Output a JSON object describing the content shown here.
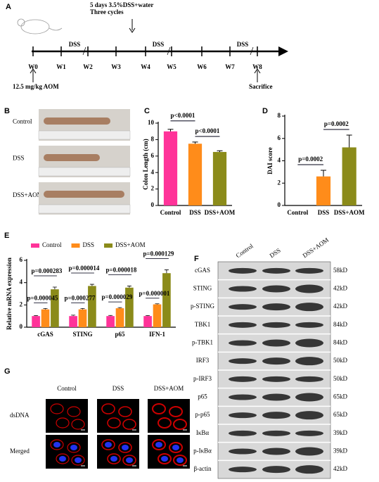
{
  "figure": {
    "panel_a": {
      "label": "A",
      "annotation": [
        "5 days 3.5%DSS+water",
        "Three cycles"
      ],
      "weeks": [
        "W0",
        "W1",
        "W2",
        "W3",
        "W4",
        "W5",
        "W6",
        "W7",
        "W8"
      ],
      "treatment": [
        "DSS",
        "DSS",
        "DSS"
      ],
      "injection": "12.5 mg/kg AOM",
      "endpoint": "Sacrifice"
    },
    "panel_b": {
      "label": "B",
      "rows": [
        "Control",
        "DSS",
        "DSS+AOM"
      ]
    },
    "panel_f": {
      "label": "F",
      "lanes": [
        "Control",
        "DSS",
        "DSS+AOM"
      ],
      "proteins": [
        "cGAS",
        "STING",
        "p-STING",
        "TBK1",
        "p-TBK1",
        "IRF3",
        "p-IRF3",
        "p65",
        "p-p65",
        "IκBα",
        "p-IκBα",
        "β-actin"
      ],
      "sizes": [
        "58kD",
        "42kD",
        "42kD",
        "84kD",
        "84kD",
        "50kD",
        "50kD",
        "65kD",
        "65kD",
        "39kD",
        "39kD",
        "42kD"
      ]
    },
    "panel_g": {
      "label": "G",
      "columns": [
        "Control",
        "DSS",
        "DSS+AOM"
      ],
      "rows": [
        "dsDNA",
        "Merged"
      ]
    }
  },
  "chart_data": [
    {
      "type": "bar",
      "panel_label": "C",
      "y_label": "Colon Length (cm)",
      "categories": [
        "Control",
        "DSS",
        "DSS+AOM"
      ],
      "values": [
        9.0,
        7.5,
        6.5
      ],
      "errors": [
        0.25,
        0.2,
        0.15
      ],
      "colors": [
        "#ff3399",
        "#ff8c1a",
        "#8b8b1a"
      ],
      "ylim": [
        0,
        10
      ],
      "yticks": [
        0,
        2,
        4,
        6,
        8,
        10
      ],
      "annotations": [
        "p<0.0001",
        "p<0.0001"
      ]
    },
    {
      "type": "bar",
      "panel_label": "D",
      "y_label": "DAI score",
      "categories": [
        "Control",
        "DSS",
        "DSS+AOM"
      ],
      "values": [
        0,
        2.6,
        5.2
      ],
      "errors": [
        0,
        0.55,
        1.1
      ],
      "colors": [
        "#ff3399",
        "#ff8c1a",
        "#8b8b1a"
      ],
      "ylim": [
        0,
        8
      ],
      "yticks": [
        0,
        2,
        4,
        6,
        8
      ],
      "annotations": [
        "p=0.0002",
        "p=0.0002"
      ]
    },
    {
      "type": "grouped-bar",
      "panel_label": "E",
      "y_label": "Relative mRNA expression",
      "categories": [
        "cGAS",
        "STING",
        "p65",
        "IFN-1"
      ],
      "series": [
        {
          "name": "Control",
          "color": "#ff3399",
          "values": [
            1,
            1,
            1,
            1
          ],
          "errors": [
            0.05,
            0.08,
            0.06,
            0.05
          ]
        },
        {
          "name": "DSS",
          "color": "#ff8c1a",
          "values": [
            1.6,
            1.6,
            1.7,
            2.05
          ],
          "errors": [
            0.08,
            0.08,
            0.06,
            0.05
          ]
        },
        {
          "name": "DSS+AOM",
          "color": "#8b8b1a",
          "values": [
            3.4,
            3.7,
            3.55,
            4.85
          ],
          "errors": [
            0.2,
            0.15,
            0.15,
            0.3
          ]
        }
      ],
      "ylim": [
        0,
        6
      ],
      "yticks": [
        0,
        2,
        4,
        6
      ],
      "annotations": [
        [
          "p=0.000045",
          "p=0.000283"
        ],
        [
          "p=0.000277",
          "p=0.000014"
        ],
        [
          "p=0.000029",
          "p=0.000018"
        ],
        [
          "p=0.000001",
          "p=0.000129"
        ]
      ]
    }
  ]
}
